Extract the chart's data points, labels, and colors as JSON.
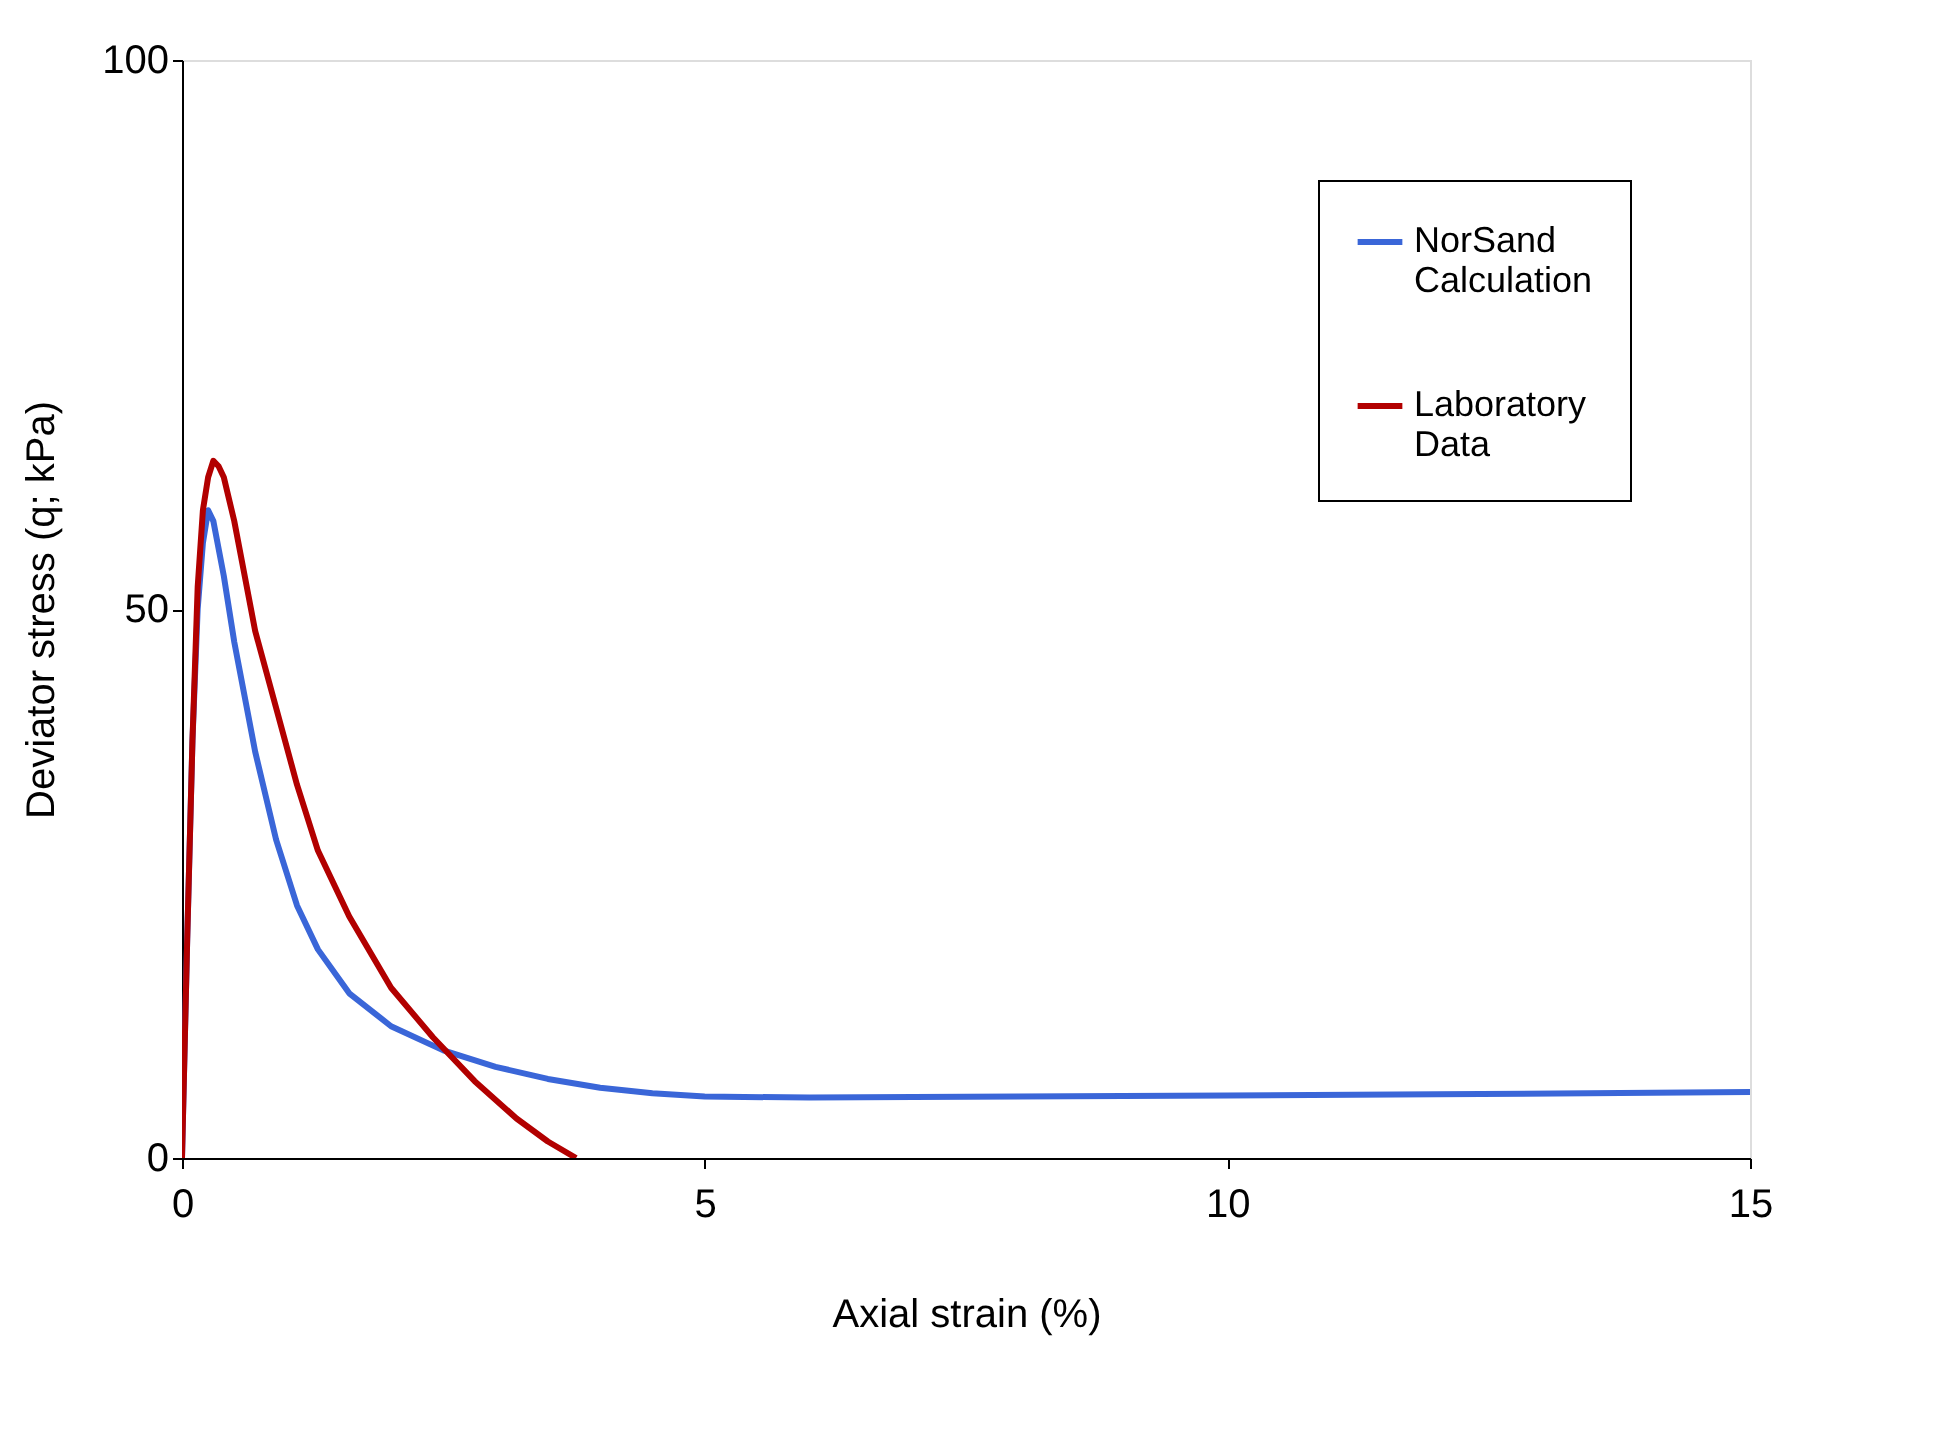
{
  "chart_data": {
    "type": "line",
    "xlabel": "Axial strain (%)",
    "ylabel": "Deviator stress (q; kPa)",
    "xlim": [
      0,
      15
    ],
    "ylim": [
      0,
      100
    ],
    "xticks": [
      0,
      5,
      10,
      15
    ],
    "yticks": [
      0,
      50,
      100
    ],
    "grid": false,
    "legend": "top right",
    "marker": "none",
    "line_style": "solid",
    "series": [
      {
        "name": "NorSand Calculation",
        "color": "#3a66d8",
        "x": [
          0,
          0.05,
          0.1,
          0.15,
          0.2,
          0.25,
          0.3,
          0.4,
          0.5,
          0.7,
          0.9,
          1.1,
          1.3,
          1.6,
          2.0,
          2.5,
          3.0,
          3.5,
          4.0,
          4.5,
          5.0,
          6,
          8,
          10,
          12,
          15
        ],
        "values": [
          0,
          20,
          38,
          50,
          56,
          59,
          58,
          53,
          47,
          37,
          29,
          23,
          19,
          15,
          12,
          9.8,
          8.3,
          7.2,
          6.4,
          5.9,
          5.6,
          5.5,
          5.6,
          5.7,
          5.8,
          6
        ]
      },
      {
        "name": "Laboratory Data",
        "color": "#b20000",
        "x": [
          0,
          0.05,
          0.1,
          0.15,
          0.2,
          0.25,
          0.3,
          0.35,
          0.4,
          0.5,
          0.6,
          0.7,
          0.9,
          1.1,
          1.3,
          1.6,
          2.0,
          2.4,
          2.8,
          3.2,
          3.5,
          3.77
        ],
        "values": [
          0,
          20,
          38,
          52,
          59,
          62,
          63.5,
          63,
          62,
          58,
          53,
          48,
          41,
          34,
          28,
          22,
          15.5,
          11,
          7,
          3.6,
          1.5,
          0
        ]
      }
    ]
  }
}
